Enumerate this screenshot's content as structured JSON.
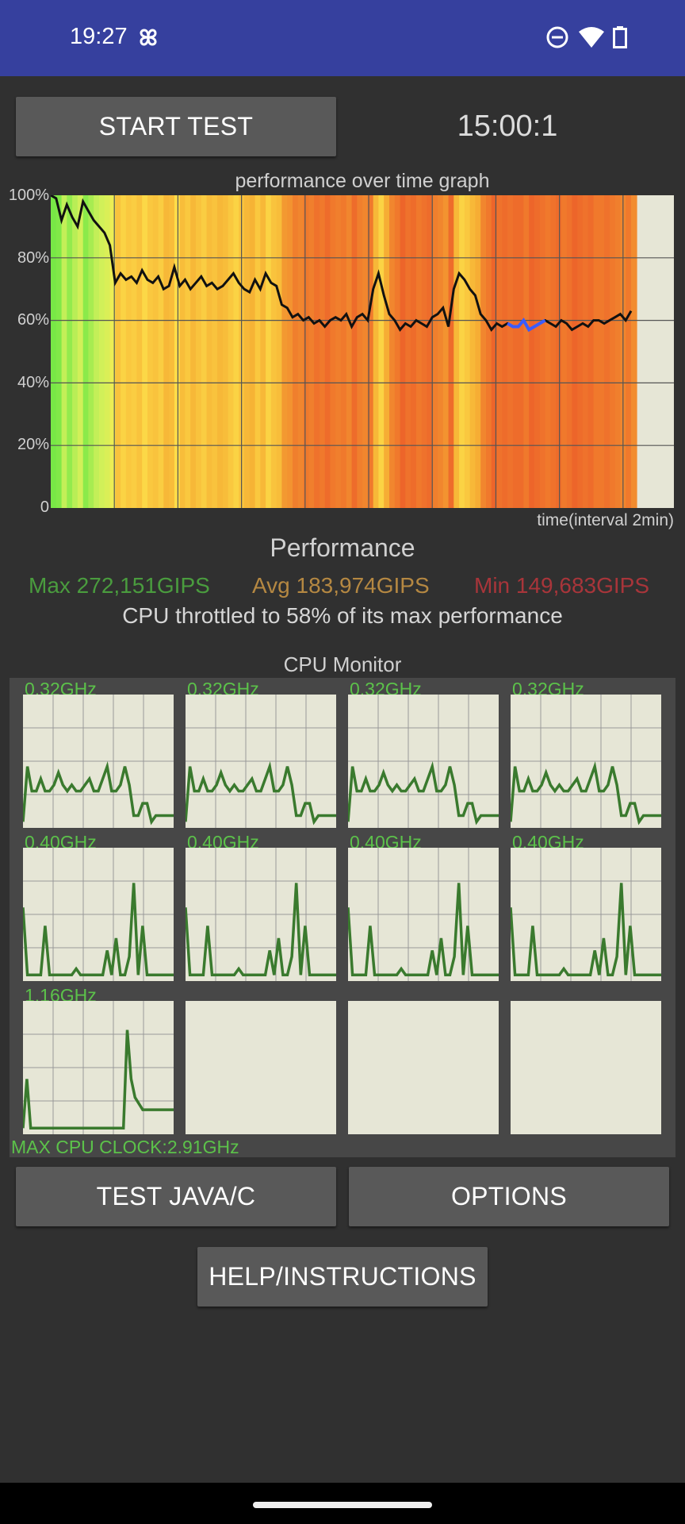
{
  "status_bar": {
    "time": "19:27"
  },
  "controls": {
    "start_label": "START TEST",
    "timer": "15:00:1"
  },
  "performance_graph": {
    "title": "performance over time graph",
    "y_ticks": [
      "100%",
      "80%",
      "60%",
      "40%",
      "20%",
      "0"
    ],
    "x_label": "time(interval 2min)",
    "values_percent": [
      100,
      99,
      92,
      97,
      93,
      90,
      98,
      95,
      92,
      90,
      88,
      84,
      72,
      75,
      73,
      74,
      72,
      76,
      73,
      72,
      74,
      70,
      71,
      77,
      71,
      73,
      70,
      72,
      74,
      71,
      72,
      70,
      71,
      73,
      75,
      72,
      70,
      69,
      73,
      70,
      75,
      72,
      71,
      65,
      64,
      61,
      62,
      60,
      61,
      59,
      60,
      58,
      60,
      61,
      60,
      62,
      58,
      61,
      62,
      60,
      70,
      75,
      68,
      62,
      60,
      57,
      59,
      58,
      60,
      59,
      58,
      61,
      62,
      64,
      58,
      70,
      75,
      73,
      70,
      68,
      62,
      60,
      57,
      59,
      58,
      59,
      58,
      58,
      60,
      57,
      58,
      59,
      60,
      59,
      58,
      60,
      59,
      57,
      58,
      59,
      58,
      60,
      60,
      59,
      60,
      61,
      62,
      60,
      63
    ]
  },
  "performance_summary": {
    "title": "Performance",
    "max": "Max 272,151GIPS",
    "avg": "Avg 183,974GIPS",
    "min": "Min 149,683GIPS",
    "throttle": "CPU throttled to 58% of its max performance"
  },
  "cpu_monitor": {
    "title": "CPU Monitor",
    "max_clock": "MAX CPU CLOCK:2.91GHz",
    "cores": [
      {
        "freq": "0.32GHz",
        "samples": [
          0.05,
          0.5,
          0.3,
          0.3,
          0.4,
          0.3,
          0.3,
          0.35,
          0.45,
          0.35,
          0.3,
          0.35,
          0.3,
          0.3,
          0.35,
          0.4,
          0.3,
          0.3,
          0.4,
          0.5,
          0.3,
          0.3,
          0.35,
          0.5,
          0.35,
          0.1,
          0.1,
          0.2,
          0.2,
          0.05,
          0.1,
          0.1,
          0.1,
          0.1,
          0.1
        ]
      },
      {
        "freq": "0.32GHz",
        "samples": [
          0.05,
          0.5,
          0.3,
          0.3,
          0.4,
          0.3,
          0.3,
          0.35,
          0.45,
          0.35,
          0.3,
          0.35,
          0.3,
          0.3,
          0.35,
          0.4,
          0.3,
          0.3,
          0.4,
          0.5,
          0.3,
          0.3,
          0.35,
          0.5,
          0.35,
          0.1,
          0.1,
          0.2,
          0.2,
          0.05,
          0.1,
          0.1,
          0.1,
          0.1,
          0.1
        ]
      },
      {
        "freq": "0.32GHz",
        "samples": [
          0.05,
          0.5,
          0.3,
          0.3,
          0.4,
          0.3,
          0.3,
          0.35,
          0.45,
          0.35,
          0.3,
          0.35,
          0.3,
          0.3,
          0.35,
          0.4,
          0.3,
          0.3,
          0.4,
          0.5,
          0.3,
          0.3,
          0.35,
          0.5,
          0.35,
          0.1,
          0.1,
          0.2,
          0.2,
          0.05,
          0.1,
          0.1,
          0.1,
          0.1,
          0.1
        ]
      },
      {
        "freq": "0.32GHz",
        "samples": [
          0.05,
          0.5,
          0.3,
          0.3,
          0.4,
          0.3,
          0.3,
          0.35,
          0.45,
          0.35,
          0.3,
          0.35,
          0.3,
          0.3,
          0.35,
          0.4,
          0.3,
          0.3,
          0.4,
          0.5,
          0.3,
          0.3,
          0.35,
          0.5,
          0.35,
          0.1,
          0.1,
          0.2,
          0.2,
          0.05,
          0.1,
          0.1,
          0.1,
          0.1,
          0.1
        ]
      },
      {
        "freq": "0.40GHz",
        "samples": [
          0.6,
          0.05,
          0.05,
          0.05,
          0.05,
          0.45,
          0.05,
          0.05,
          0.05,
          0.05,
          0.05,
          0.05,
          0.1,
          0.05,
          0.05,
          0.05,
          0.05,
          0.05,
          0.05,
          0.25,
          0.05,
          0.35,
          0.05,
          0.05,
          0.2,
          0.8,
          0.05,
          0.45,
          0.05,
          0.05,
          0.05,
          0.05,
          0.05,
          0.05,
          0.05
        ]
      },
      {
        "freq": "0.40GHz",
        "samples": [
          0.6,
          0.05,
          0.05,
          0.05,
          0.05,
          0.45,
          0.05,
          0.05,
          0.05,
          0.05,
          0.05,
          0.05,
          0.1,
          0.05,
          0.05,
          0.05,
          0.05,
          0.05,
          0.05,
          0.25,
          0.05,
          0.35,
          0.05,
          0.05,
          0.2,
          0.8,
          0.05,
          0.45,
          0.05,
          0.05,
          0.05,
          0.05,
          0.05,
          0.05,
          0.05
        ]
      },
      {
        "freq": "0.40GHz",
        "samples": [
          0.6,
          0.05,
          0.05,
          0.05,
          0.05,
          0.45,
          0.05,
          0.05,
          0.05,
          0.05,
          0.05,
          0.05,
          0.1,
          0.05,
          0.05,
          0.05,
          0.05,
          0.05,
          0.05,
          0.25,
          0.05,
          0.35,
          0.05,
          0.05,
          0.2,
          0.8,
          0.05,
          0.45,
          0.05,
          0.05,
          0.05,
          0.05,
          0.05,
          0.05,
          0.05
        ]
      },
      {
        "freq": "0.40GHz",
        "samples": [
          0.6,
          0.05,
          0.05,
          0.05,
          0.05,
          0.45,
          0.05,
          0.05,
          0.05,
          0.05,
          0.05,
          0.05,
          0.1,
          0.05,
          0.05,
          0.05,
          0.05,
          0.05,
          0.05,
          0.25,
          0.05,
          0.35,
          0.05,
          0.05,
          0.2,
          0.8,
          0.05,
          0.45,
          0.05,
          0.05,
          0.05,
          0.05,
          0.05,
          0.05,
          0.05
        ]
      },
      {
        "freq": "1.16GHz",
        "samples": [
          0.05,
          0.45,
          0.05,
          0.05,
          0.05,
          0.05,
          0.05,
          0.05,
          0.05,
          0.05,
          0.05,
          0.05,
          0.05,
          0.05,
          0.05,
          0.05,
          0.05,
          0.05,
          0.05,
          0.05,
          0.05,
          0.05,
          0.05,
          0.05,
          0.05,
          0.05,
          0.05,
          0.85,
          0.45,
          0.3,
          0.25,
          0.2,
          0.2,
          0.2,
          0.2,
          0.2,
          0.2,
          0.2,
          0.2,
          0.2
        ]
      },
      {
        "freq": "",
        "samples": []
      },
      {
        "freq": "",
        "samples": []
      },
      {
        "freq": "",
        "samples": []
      }
    ]
  },
  "buttons": {
    "test_java_c": "TEST JAVA/C",
    "options": "OPTIONS",
    "help": "HELP/INSTRUCTIONS"
  }
}
